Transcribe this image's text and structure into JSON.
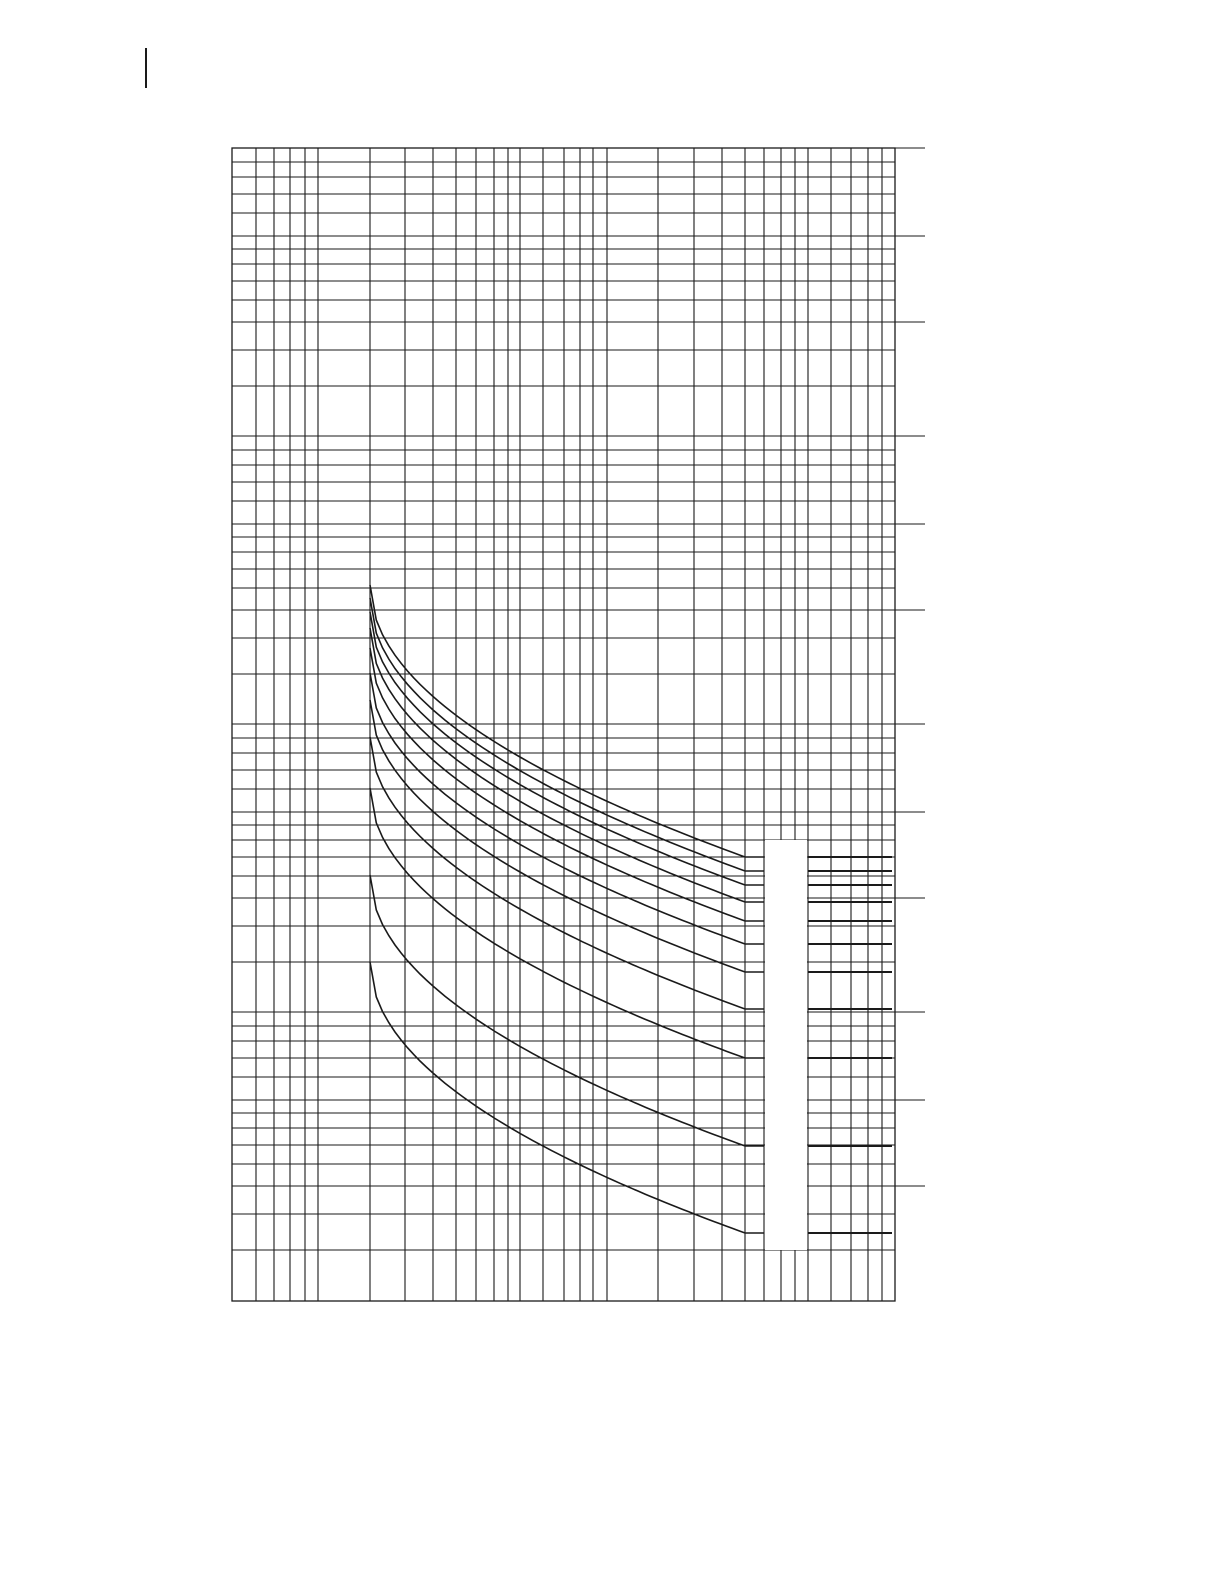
{
  "chart_data": {
    "type": "line",
    "title": "",
    "xlabel": "",
    "ylabel": "",
    "x_scale": "log",
    "y_scale": "log",
    "grid": true,
    "curve_count": 11,
    "line_color": "#1a1a1a",
    "grid_color": "#1a1a1a",
    "background_color": "#ffffff"
  }
}
